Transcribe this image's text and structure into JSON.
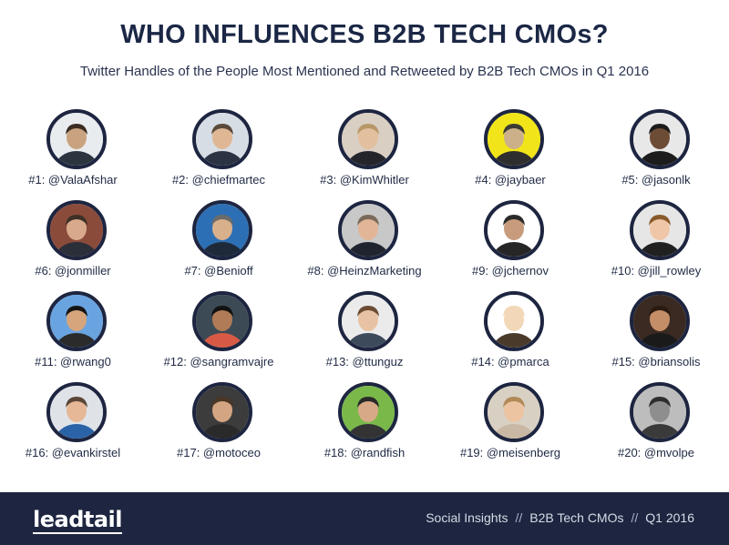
{
  "header": {
    "title": "WHO INFLUENCES B2B TECH CMOs?",
    "subtitle": "Twitter Handles of the People Most Mentioned and Retweeted by B2B Tech CMOs in Q1 2016"
  },
  "influencers": [
    {
      "label": "#1: @ValaAfshar",
      "bg": "#e9ecef",
      "skin": "#c9a27f",
      "hair": "#3a2c22",
      "shirt": "#2c3440"
    },
    {
      "label": "#2: @chiefmartec",
      "bg": "#d7dde4",
      "skin": "#e0b795",
      "hair": "#5a4a3c",
      "shirt": "#2b3242"
    },
    {
      "label": "#3: @KimWhitler",
      "bg": "#d9cfc3",
      "skin": "#e2bf9e",
      "hair": "#b89868",
      "shirt": "#24252b"
    },
    {
      "label": "#4: @jaybaer",
      "bg": "#f1e419",
      "skin": "#ccb08a",
      "hair": "#3b3a36",
      "shirt": "#2e2e2e"
    },
    {
      "label": "#5: @jasonlk",
      "bg": "#e8e8e8",
      "skin": "#6d4c36",
      "hair": "#1b1b1b",
      "shirt": "#1c1c1c"
    },
    {
      "label": "#6: @jonmiller",
      "bg": "#8b4b3b",
      "skin": "#d9a98b",
      "hair": "#3d3026",
      "shirt": "#2a2f3a"
    },
    {
      "label": "#7: @Benioff",
      "bg": "#2d6fb4",
      "skin": "#d9b08c",
      "hair": "#6b6b6b",
      "shirt": "#1e2a3a"
    },
    {
      "label": "#8: @HeinzMarketing",
      "bg": "#c8c8c8",
      "skin": "#e2b596",
      "hair": "#7a6a5a",
      "shirt": "#20242e"
    },
    {
      "label": "#9: @jchernov",
      "bg": "#ffffff",
      "skin": "#c79b7b",
      "hair": "#2a2a2a",
      "shirt": "#262626"
    },
    {
      "label": "#10: @jill_rowley",
      "bg": "#e6e6e6",
      "skin": "#efc7a8",
      "hair": "#8a5a2c",
      "shirt": "#202020"
    },
    {
      "label": "#11: @rwang0",
      "bg": "#6aa4e0",
      "skin": "#d6a57c",
      "hair": "#151515",
      "shirt": "#2b2b2b"
    },
    {
      "label": "#12: @sangramvajre",
      "bg": "#3c4a55",
      "skin": "#b07b56",
      "hair": "#121212",
      "shirt": "#d85a45"
    },
    {
      "label": "#13: @ttunguz",
      "bg": "#ebebeb",
      "skin": "#e8c2a3",
      "hair": "#6b4c33",
      "shirt": "#3d4a5c"
    },
    {
      "label": "#14: @pmarca",
      "bg": "#ffffff",
      "skin": "#f2d8b8",
      "hair": "#f2d8b8",
      "shirt": "#4a3a2a"
    },
    {
      "label": "#15: @briansolis",
      "bg": "#3a2a22",
      "skin": "#c48e68",
      "hair": "#2a1a12",
      "shirt": "#1a1a1a"
    },
    {
      "label": "#16: @evankirstel",
      "bg": "#dfe3e8",
      "skin": "#e6b898",
      "hair": "#5a4636",
      "shirt": "#2b63a8"
    },
    {
      "label": "#17: @motoceo",
      "bg": "#3c3c3c",
      "skin": "#d4a583",
      "hair": "#4a3626",
      "shirt": "#2a2a2a"
    },
    {
      "label": "#18: @randfish",
      "bg": "#7ab84a",
      "skin": "#d8a987",
      "hair": "#2a2a2a",
      "shirt": "#333333"
    },
    {
      "label": "#19: @meisenberg",
      "bg": "#d9d0c4",
      "skin": "#ecc4a2",
      "hair": "#b08a58",
      "shirt": "#c9b8a3"
    },
    {
      "label": "#20: @mvolpe",
      "bg": "#bdbdbd",
      "skin": "#8e8e8e",
      "hair": "#2e2e2e",
      "shirt": "#3a3a3a"
    }
  ],
  "footer": {
    "logo": "leadtail",
    "meta": [
      "Social Insights",
      "B2B Tech CMOs",
      "Q1 2016"
    ],
    "separator": "//"
  }
}
